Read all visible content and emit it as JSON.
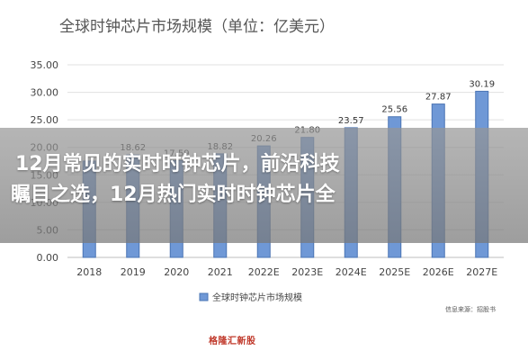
{
  "chart_data": {
    "type": "bar",
    "title": "全球时钟芯片市场规模（单位：亿美元）",
    "categories": [
      "2018",
      "2019",
      "2020",
      "2021",
      "2022E",
      "2023E",
      "2024E",
      "2025E",
      "2026E",
      "2027E"
    ],
    "series": [
      {
        "name": "全球时钟芯片市场规模",
        "values": [
          17.5,
          18.62,
          17.59,
          18.82,
          20.26,
          21.8,
          23.57,
          25.56,
          27.87,
          30.19
        ],
        "labels": [
          "",
          "18.62",
          "17.59",
          "18.82",
          "20.26",
          "21.80",
          "23.57",
          "25.56",
          "27.87",
          "30.19"
        ]
      }
    ],
    "yticks": [
      "0.00",
      "5.00",
      "10.00",
      "15.00",
      "20.00",
      "25.00",
      "30.00",
      "35.00"
    ],
    "ylim": [
      0,
      35
    ],
    "grid": true,
    "legend": "bottom-left",
    "bar_color": "#6f98d6",
    "bar_border_color": "#4a74b4"
  },
  "overlay": {
    "line1": "12月常见的实时时钟芯片，前沿科技",
    "line2": "瞩目之选，12月热门实时时钟芯片全"
  },
  "source": "信息来源：招股书",
  "logo": "格隆汇新股"
}
